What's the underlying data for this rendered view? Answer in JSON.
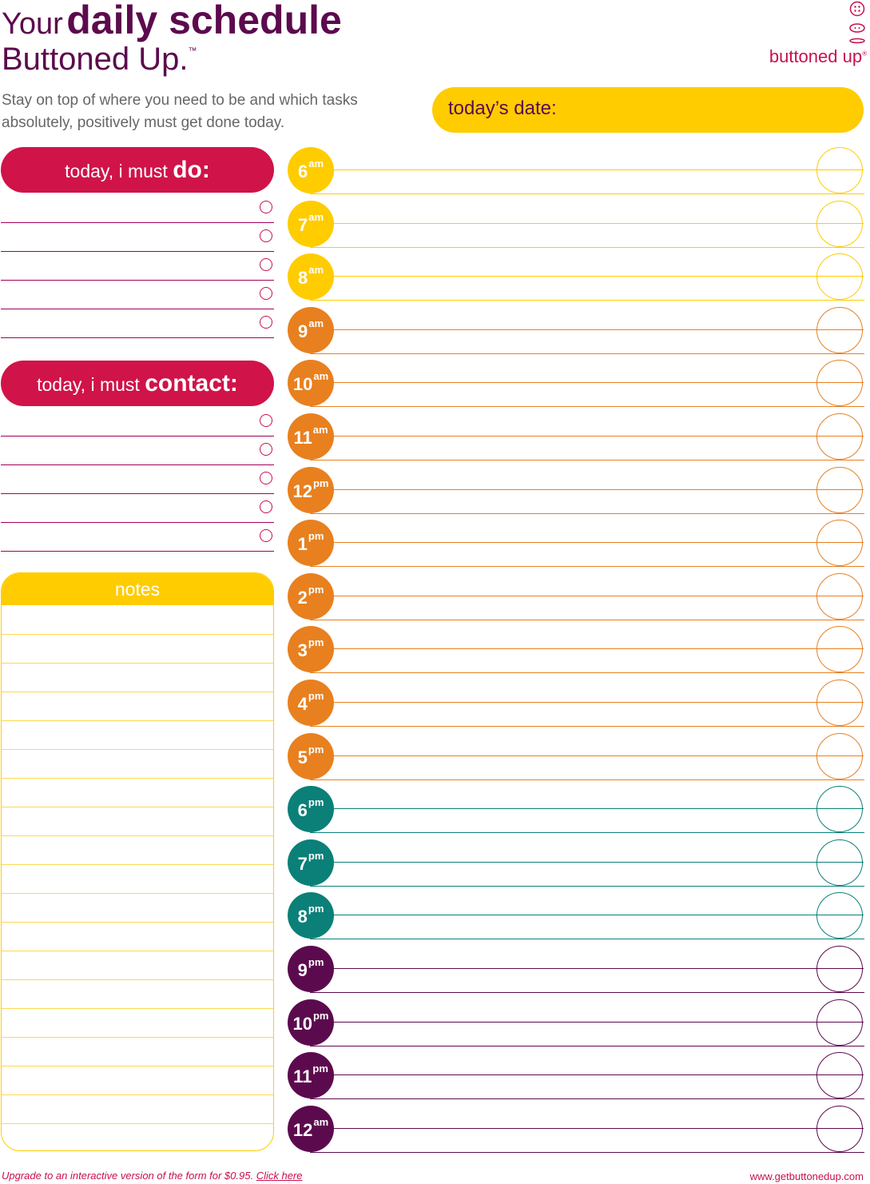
{
  "header": {
    "title_word1": "Your",
    "title_word2": "daily schedule",
    "title_line2": "Buttoned Up.",
    "trademark": "™",
    "subtitle": "Stay on top of where you need to be and which tasks absolutely, positively must get done today."
  },
  "logo": {
    "text": "buttoned up",
    "mark": "®"
  },
  "date": {
    "label": "today’s date:"
  },
  "must_do": {
    "label_prefix": "today, i must ",
    "label_bold": "do:",
    "rows": 5
  },
  "must_contact": {
    "label_prefix": "today, i must ",
    "label_bold": "contact:",
    "rows": 5
  },
  "notes": {
    "label": "notes",
    "rows": 19
  },
  "schedule": {
    "colors": {
      "yellow": "#ffcc00",
      "orange": "#e8801f",
      "teal": "#0a8078",
      "purple": "#5c0a4e"
    },
    "hours": [
      {
        "h": "6",
        "s": "am",
        "c": "yellow"
      },
      {
        "h": "7",
        "s": "am",
        "c": "yellow"
      },
      {
        "h": "8",
        "s": "am",
        "c": "yellow"
      },
      {
        "h": "9",
        "s": "am",
        "c": "orange"
      },
      {
        "h": "10",
        "s": "am",
        "c": "orange"
      },
      {
        "h": "11",
        "s": "am",
        "c": "orange"
      },
      {
        "h": "12",
        "s": "pm",
        "c": "orange"
      },
      {
        "h": "1",
        "s": "pm",
        "c": "orange"
      },
      {
        "h": "2",
        "s": "pm",
        "c": "orange"
      },
      {
        "h": "3",
        "s": "pm",
        "c": "orange"
      },
      {
        "h": "4",
        "s": "pm",
        "c": "orange"
      },
      {
        "h": "5",
        "s": "pm",
        "c": "orange"
      },
      {
        "h": "6",
        "s": "pm",
        "c": "teal"
      },
      {
        "h": "7",
        "s": "pm",
        "c": "teal"
      },
      {
        "h": "8",
        "s": "pm",
        "c": "teal"
      },
      {
        "h": "9",
        "s": "pm",
        "c": "purple"
      },
      {
        "h": "10",
        "s": "pm",
        "c": "purple"
      },
      {
        "h": "11",
        "s": "pm",
        "c": "purple"
      },
      {
        "h": "12",
        "s": "am",
        "c": "purple"
      }
    ]
  },
  "footer": {
    "upgrade_text": "Upgrade to an interactive version of the form for $0.95.",
    "click_here": "Click here",
    "website": "www.getbuttonedup.com"
  }
}
